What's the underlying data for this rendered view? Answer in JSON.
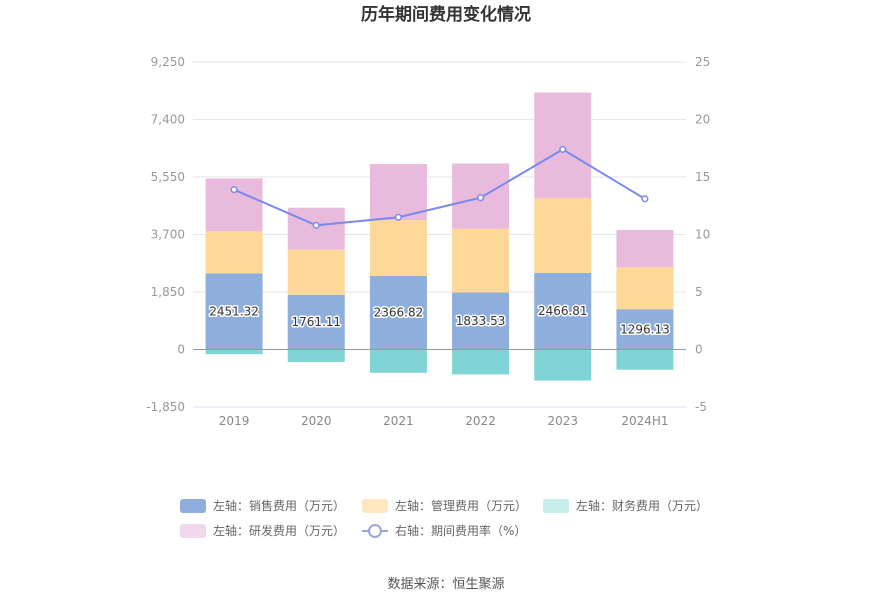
{
  "chart_data": {
    "type": "bar",
    "title": "历年期间费用变化情况",
    "categories": [
      "2019",
      "2020",
      "2021",
      "2022",
      "2023",
      "2024H1"
    ],
    "left_axis": {
      "ticks": [
        "9,250",
        "7,400",
        "5,550",
        "3,700",
        "1,850",
        "0",
        "-1,850"
      ],
      "ylim": [
        -1850,
        9250
      ]
    },
    "right_axis": {
      "ticks": [
        "25",
        "20",
        "15",
        "10",
        "5",
        "0",
        "-5"
      ],
      "ylim": [
        -5,
        25
      ]
    },
    "series": [
      {
        "name": "左轴：销售费用（万元）",
        "type": "bar",
        "color": "#8eaedc",
        "values": [
          2451.32,
          1761.11,
          2366.82,
          1833.53,
          2466.81,
          1296.13
        ],
        "labels": [
          "2451.32",
          "1761.11",
          "2366.82",
          "1833.53",
          "2466.81",
          "1296.13"
        ]
      },
      {
        "name": "左轴：管理费用（万元）",
        "type": "bar",
        "color": "#fdd898",
        "values": [
          1350,
          1450,
          1800,
          2050,
          2400,
          1350
        ]
      },
      {
        "name": "左轴：财务费用（万元）",
        "type": "bar",
        "color": "#80d4d6",
        "values": [
          -150,
          -400,
          -750,
          -800,
          -1000,
          -650
        ]
      },
      {
        "name": "左轴：研发费用（万元）",
        "type": "bar",
        "color": "#e8bbdc",
        "values": [
          1700,
          1350,
          1800,
          2100,
          3400,
          1200
        ]
      },
      {
        "name": "右轴：期间费用率（%）",
        "type": "line",
        "color": "#7a88f0",
        "values": [
          13.9,
          10.8,
          11.5,
          13.2,
          17.4,
          13.1
        ]
      }
    ]
  },
  "legend": [
    {
      "label": "左轴：销售费用（万元）",
      "kind": "bar",
      "color": "#8eaedc"
    },
    {
      "label": "左轴：管理费用（万元）",
      "kind": "bar",
      "color": "#ffe7bd"
    },
    {
      "label": "左轴：财务费用（万元）",
      "kind": "bar",
      "color": "#c6ecec"
    },
    {
      "label": "左轴：研发费用（万元）",
      "kind": "bar",
      "color": "#f2d8ec"
    },
    {
      "label": "右轴：期间费用率（%）",
      "kind": "line",
      "color": "#9aa8e0"
    }
  ],
  "source": "数据来源：恒生聚源"
}
